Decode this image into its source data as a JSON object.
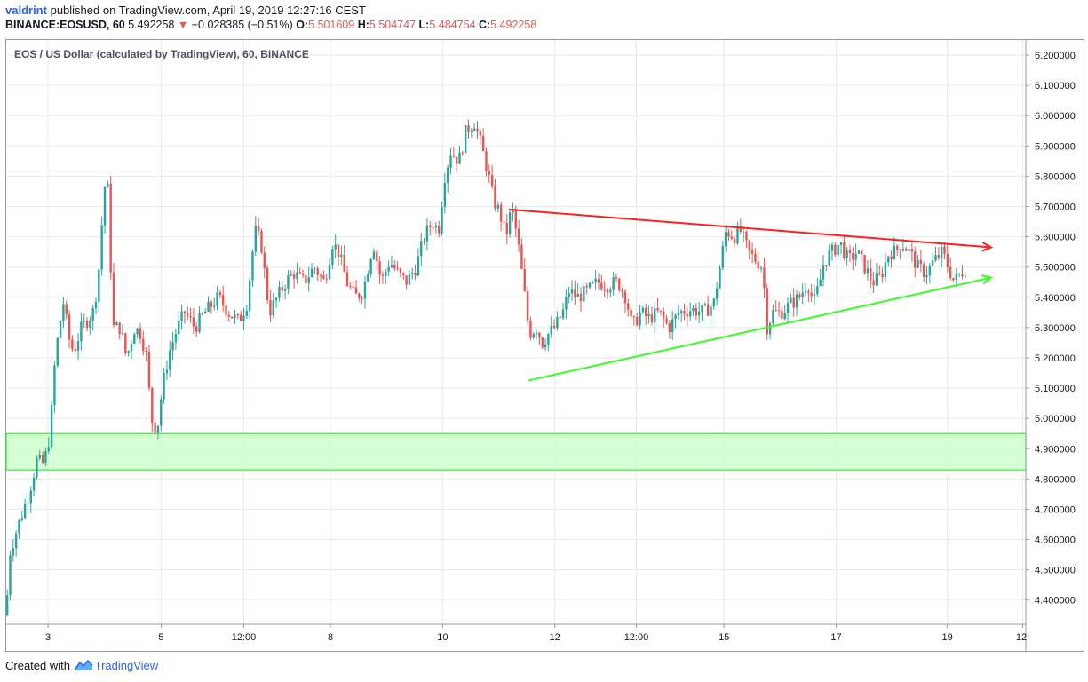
{
  "header": {
    "author": "valdrint",
    "published": "published on TradingView.com, April 19, 2019 12:27:16 CEST",
    "symbol": "BINANCE:EOSUSD, 60",
    "last": "5.492258",
    "arrow": "▼",
    "change": "−0.028385 (−0.51%)",
    "o_label": "O:",
    "o_value": "5.501609",
    "h_label": "H:",
    "h_value": "5.504747",
    "l_label": "L:",
    "l_value": "5.484754",
    "c_label": "C:",
    "c_value": "5.492258"
  },
  "footer": {
    "created_with": "Created with",
    "brand": "TradingView"
  },
  "colors": {
    "up": "#26a69a",
    "down": "#ef5350",
    "resistance": "#ff1f1f",
    "support": "#33ff22",
    "zone_fill": "#ccffcc",
    "zone_border": "#33ee33",
    "grid": "#e9eaee",
    "axis_text": "#131722"
  },
  "chart_data": {
    "type": "candlestick",
    "title": "EOS / US Dollar (calculated by TradingView), 60, BINANCE",
    "interval": "60",
    "ylim": [
      4.32,
      6.25
    ],
    "y_ticks": [
      "6.200000",
      "6.100000",
      "6.000000",
      "5.900000",
      "5.800000",
      "5.700000",
      "5.600000",
      "5.500000",
      "5.400000",
      "5.300000",
      "5.200000",
      "5.100000",
      "5.000000",
      "4.900000",
      "4.800000",
      "4.700000",
      "4.600000",
      "4.500000",
      "4.400000"
    ],
    "x_ticks": [
      {
        "label": "3",
        "t": 0.041
      },
      {
        "label": "5",
        "t": 0.152
      },
      {
        "label": "12:00",
        "t": 0.233
      },
      {
        "label": "8",
        "t": 0.318
      },
      {
        "label": "10",
        "t": 0.428
      },
      {
        "label": "12",
        "t": 0.538
      },
      {
        "label": "12:00",
        "t": 0.618
      },
      {
        "label": "15",
        "t": 0.704
      },
      {
        "label": "17",
        "t": 0.814
      },
      {
        "label": "19",
        "t": 0.923
      },
      {
        "label": "12:",
        "t": 0.997
      }
    ],
    "anchors": [
      [
        0.0,
        4.35
      ],
      [
        0.003,
        4.55
      ],
      [
        0.012,
        4.65
      ],
      [
        0.022,
        4.75
      ],
      [
        0.03,
        4.86
      ],
      [
        0.037,
        4.85
      ],
      [
        0.043,
        4.95
      ],
      [
        0.048,
        5.2
      ],
      [
        0.052,
        5.3
      ],
      [
        0.057,
        5.4
      ],
      [
        0.06,
        5.28
      ],
      [
        0.066,
        5.22
      ],
      [
        0.074,
        5.3
      ],
      [
        0.085,
        5.35
      ],
      [
        0.09,
        5.45
      ],
      [
        0.094,
        5.65
      ],
      [
        0.098,
        5.82
      ],
      [
        0.101,
        5.7
      ],
      [
        0.104,
        5.3
      ],
      [
        0.112,
        5.3
      ],
      [
        0.118,
        5.2
      ],
      [
        0.126,
        5.3
      ],
      [
        0.132,
        5.28
      ],
      [
        0.138,
        5.2
      ],
      [
        0.142,
        5.0
      ],
      [
        0.148,
        4.96
      ],
      [
        0.153,
        5.1
      ],
      [
        0.16,
        5.22
      ],
      [
        0.168,
        5.3
      ],
      [
        0.175,
        5.35
      ],
      [
        0.185,
        5.3
      ],
      [
        0.195,
        5.35
      ],
      [
        0.208,
        5.4
      ],
      [
        0.218,
        5.35
      ],
      [
        0.228,
        5.32
      ],
      [
        0.236,
        5.38
      ],
      [
        0.244,
        5.62
      ],
      [
        0.25,
        5.58
      ],
      [
        0.258,
        5.35
      ],
      [
        0.266,
        5.4
      ],
      [
        0.274,
        5.45
      ],
      [
        0.282,
        5.48
      ],
      [
        0.292,
        5.45
      ],
      [
        0.302,
        5.5
      ],
      [
        0.312,
        5.45
      ],
      [
        0.32,
        5.58
      ],
      [
        0.326,
        5.55
      ],
      [
        0.334,
        5.45
      ],
      [
        0.342,
        5.4
      ],
      [
        0.35,
        5.42
      ],
      [
        0.36,
        5.58
      ],
      [
        0.368,
        5.45
      ],
      [
        0.376,
        5.52
      ],
      [
        0.384,
        5.48
      ],
      [
        0.392,
        5.45
      ],
      [
        0.402,
        5.5
      ],
      [
        0.41,
        5.6
      ],
      [
        0.418,
        5.65
      ],
      [
        0.424,
        5.62
      ],
      [
        0.43,
        5.8
      ],
      [
        0.436,
        5.88
      ],
      [
        0.444,
        5.85
      ],
      [
        0.451,
        5.95
      ],
      [
        0.459,
        5.98
      ],
      [
        0.466,
        5.9
      ],
      [
        0.472,
        5.82
      ],
      [
        0.478,
        5.72
      ],
      [
        0.484,
        5.68
      ],
      [
        0.49,
        5.6
      ],
      [
        0.496,
        5.7
      ],
      [
        0.502,
        5.58
      ],
      [
        0.508,
        5.42
      ],
      [
        0.513,
        5.28
      ],
      [
        0.52,
        5.3
      ],
      [
        0.526,
        5.25
      ],
      [
        0.532,
        5.28
      ],
      [
        0.538,
        5.3
      ],
      [
        0.546,
        5.35
      ],
      [
        0.552,
        5.42
      ],
      [
        0.56,
        5.4
      ],
      [
        0.57,
        5.42
      ],
      [
        0.58,
        5.45
      ],
      [
        0.59,
        5.44
      ],
      [
        0.6,
        5.45
      ],
      [
        0.608,
        5.4
      ],
      [
        0.614,
        5.3
      ],
      [
        0.622,
        5.35
      ],
      [
        0.63,
        5.33
      ],
      [
        0.64,
        5.35
      ],
      [
        0.65,
        5.3
      ],
      [
        0.66,
        5.35
      ],
      [
        0.672,
        5.36
      ],
      [
        0.684,
        5.35
      ],
      [
        0.694,
        5.38
      ],
      [
        0.7,
        5.5
      ],
      [
        0.706,
        5.62
      ],
      [
        0.714,
        5.6
      ],
      [
        0.72,
        5.62
      ],
      [
        0.728,
        5.55
      ],
      [
        0.736,
        5.52
      ],
      [
        0.742,
        5.5
      ],
      [
        0.746,
        5.3
      ],
      [
        0.752,
        5.35
      ],
      [
        0.76,
        5.35
      ],
      [
        0.77,
        5.38
      ],
      [
        0.778,
        5.4
      ],
      [
        0.786,
        5.45
      ],
      [
        0.792,
        5.38
      ],
      [
        0.798,
        5.45
      ],
      [
        0.802,
        5.52
      ],
      [
        0.81,
        5.55
      ],
      [
        0.818,
        5.58
      ],
      [
        0.826,
        5.52
      ],
      [
        0.834,
        5.55
      ],
      [
        0.842,
        5.5
      ],
      [
        0.85,
        5.45
      ],
      [
        0.858,
        5.47
      ],
      [
        0.866,
        5.55
      ],
      [
        0.872,
        5.55
      ],
      [
        0.878,
        5.58
      ],
      [
        0.886,
        5.55
      ],
      [
        0.894,
        5.5
      ],
      [
        0.902,
        5.48
      ],
      [
        0.91,
        5.52
      ],
      [
        0.918,
        5.55
      ],
      [
        0.924,
        5.5
      ],
      [
        0.93,
        5.45
      ],
      [
        0.936,
        5.48
      ],
      [
        0.942,
        5.5
      ]
    ],
    "support_zone": {
      "from": 4.83,
      "to": 4.95
    },
    "resistance_line": {
      "t1": 0.493,
      "y1": 5.69,
      "t2": 0.966,
      "y2": 5.565
    },
    "support_line": {
      "t1": 0.512,
      "y1": 5.125,
      "t2": 0.966,
      "y2": 5.465
    },
    "grid": true
  }
}
